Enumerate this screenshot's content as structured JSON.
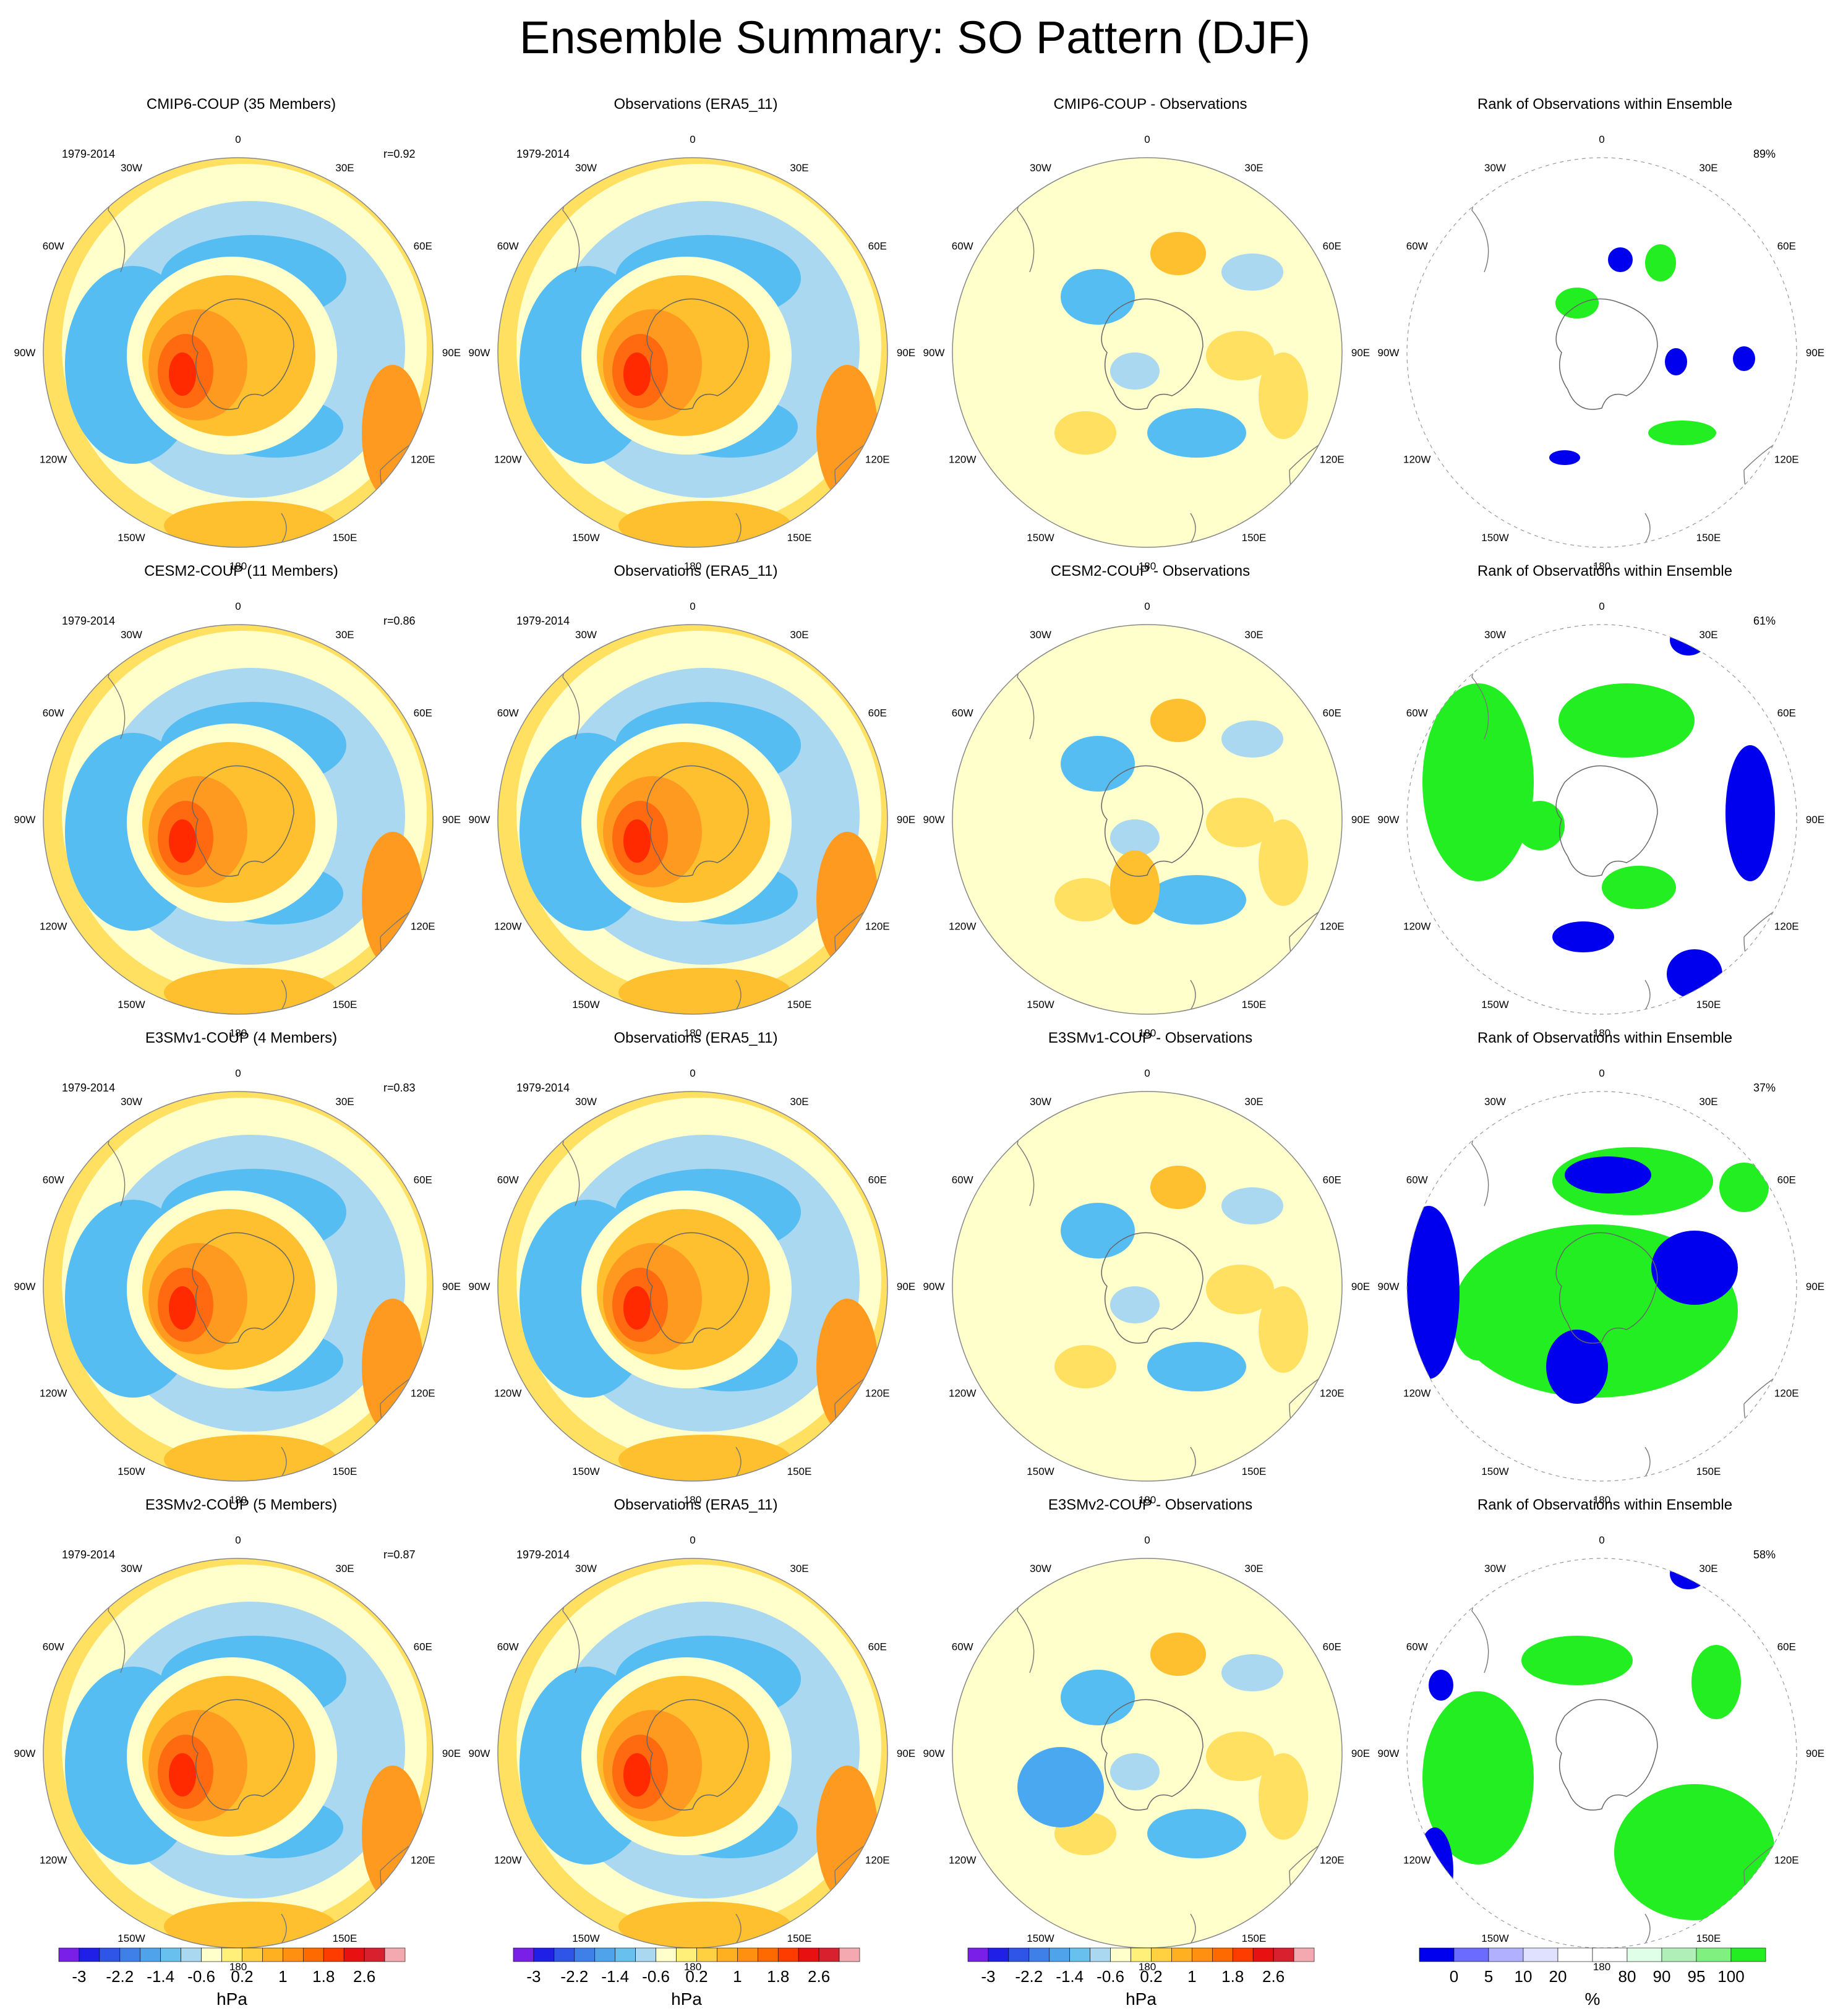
{
  "title": "Ensemble Summary: SO Pattern (DJF)",
  "lon_labels": [
    "0",
    "30E",
    "60E",
    "90E",
    "120E",
    "150E",
    "180",
    "150W",
    "120W",
    "90W",
    "60W",
    "30W"
  ],
  "rows": [
    {
      "model_title": "CMIP6-COUP (35 Members)",
      "period": "1979-2014",
      "r": "r=0.92",
      "obs_title": "Observations (ERA5_11)",
      "obs_period": "1979-2014",
      "diff_title": "CMIP6-COUP - Observations",
      "rank_title": "Rank of Observations within Ensemble",
      "rank_pct": "89%"
    },
    {
      "model_title": "CESM2-COUP (11 Members)",
      "period": "1979-2014",
      "r": "r=0.86",
      "obs_title": "Observations (ERA5_11)",
      "obs_period": "1979-2014",
      "diff_title": "CESM2-COUP - Observations",
      "rank_title": "Rank of Observations within Ensemble",
      "rank_pct": "61%"
    },
    {
      "model_title": "E3SMv1-COUP (4 Members)",
      "period": "1979-2014",
      "r": "r=0.83",
      "obs_title": "Observations (ERA5_11)",
      "obs_period": "1979-2014",
      "diff_title": "E3SMv1-COUP - Observations",
      "rank_title": "Rank of Observations within Ensemble",
      "rank_pct": "37%"
    },
    {
      "model_title": "E3SMv2-COUP (5 Members)",
      "period": "1979-2014",
      "r": "r=0.87",
      "obs_title": "Observations (ERA5_11)",
      "obs_period": "1979-2014",
      "diff_title": "E3SMv2-COUP - Observations",
      "rank_title": "Rank of Observations within Ensemble",
      "rank_pct": "58%"
    }
  ],
  "colorbar_hpa": {
    "colors": [
      "#7a1fe8",
      "#1f1fe8",
      "#2f55e8",
      "#3f7fe8",
      "#4fa3ea",
      "#68c0ee",
      "#a9d8f0",
      "#ffffcc",
      "#fff07a",
      "#ffd040",
      "#ffb020",
      "#ff9010",
      "#ff6a00",
      "#ff3c00",
      "#e81010",
      "#d8202e",
      "#f4a8b0"
    ],
    "ticks": [
      "-3",
      "-2.2",
      "-1.4",
      "-0.6",
      "0.2",
      "1",
      "1.8",
      "2.6"
    ],
    "unit": "hPa"
  },
  "colorbar_rank": {
    "colors": [
      "#0000ee",
      "#6b6bff",
      "#b0b0ff",
      "#e0e0ff",
      "#ffffff",
      "#ffffff",
      "#e0ffe8",
      "#b0f0b8",
      "#80f080",
      "#22ee22"
    ],
    "ticks": [
      "0",
      "5",
      "10",
      "20",
      "80",
      "90",
      "95",
      "100"
    ],
    "unit": "%"
  },
  "field_palette": {
    "neg_dark": "#4aa8f0",
    "neg_mid": "#56bdf3",
    "neg_light": "#a9d8f0",
    "neutral": "#ffffcc",
    "pos_light": "#ffe060",
    "pos_mid": "#ffc030",
    "pos_orange": "#ff9a20",
    "pos_dark": "#ff6a10",
    "pos_red": "#ff2a00"
  }
}
